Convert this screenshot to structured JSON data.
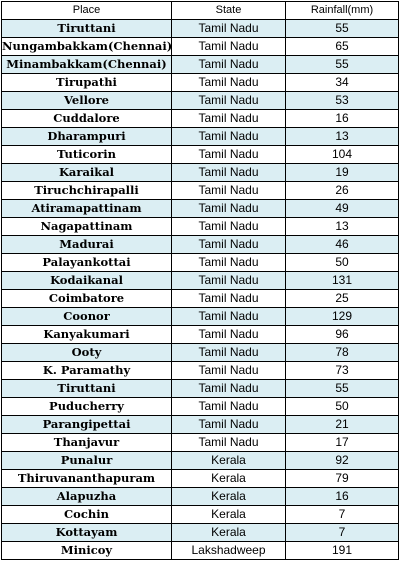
{
  "table": {
    "headers": [
      "Place",
      "State",
      "Rainfall(mm)"
    ],
    "rows": [
      {
        "place": "Tiruttani",
        "state": "Tamil Nadu",
        "rainfall": "55"
      },
      {
        "place": "Nungambakkam(Chennai)",
        "state": "Tamil Nadu",
        "rainfall": "65"
      },
      {
        "place": "Minambakkam(Chennai)",
        "state": "Tamil Nadu",
        "rainfall": "55"
      },
      {
        "place": "Tirupathi",
        "state": "Tamil Nadu",
        "rainfall": "34"
      },
      {
        "place": "Vellore",
        "state": "Tamil Nadu",
        "rainfall": "53"
      },
      {
        "place": "Cuddalore",
        "state": "Tamil Nadu",
        "rainfall": "16"
      },
      {
        "place": "Dharampuri",
        "state": "Tamil Nadu",
        "rainfall": "13"
      },
      {
        "place": "Tuticorin",
        "state": "Tamil Nadu",
        "rainfall": "104"
      },
      {
        "place": "Karaikal",
        "state": "Tamil Nadu",
        "rainfall": "19"
      },
      {
        "place": "Tiruchchirapalli",
        "state": "Tamil Nadu",
        "rainfall": "26"
      },
      {
        "place": "Atiramapattinam",
        "state": "Tamil Nadu",
        "rainfall": "49"
      },
      {
        "place": "Nagapattinam",
        "state": "Tamil Nadu",
        "rainfall": "13"
      },
      {
        "place": "Madurai",
        "state": "Tamil Nadu",
        "rainfall": "46"
      },
      {
        "place": "Palayankottai",
        "state": "Tamil Nadu",
        "rainfall": "50"
      },
      {
        "place": "Kodaikanal",
        "state": "Tamil Nadu",
        "rainfall": "131"
      },
      {
        "place": "Coimbatore",
        "state": "Tamil Nadu",
        "rainfall": "25"
      },
      {
        "place": "Coonor",
        "state": "Tamil Nadu",
        "rainfall": "129"
      },
      {
        "place": "Kanyakumari",
        "state": "Tamil Nadu",
        "rainfall": "96"
      },
      {
        "place": "Ooty",
        "state": "Tamil Nadu",
        "rainfall": "78"
      },
      {
        "place": "K. Paramathy",
        "state": "Tamil Nadu",
        "rainfall": "73"
      },
      {
        "place": "Tiruttani",
        "state": "Tamil Nadu",
        "rainfall": "55"
      },
      {
        "place": "Puducherry",
        "state": "Tamil Nadu",
        "rainfall": "50"
      },
      {
        "place": "Parangipettai",
        "state": "Tamil Nadu",
        "rainfall": "21"
      },
      {
        "place": "Thanjavur",
        "state": "Tamil Nadu",
        "rainfall": "17"
      },
      {
        "place": "Punalur",
        "state": "Kerala",
        "rainfall": "92"
      },
      {
        "place": "Thiruvananthapuram",
        "state": "Kerala",
        "rainfall": "79"
      },
      {
        "place": "Alapuzha",
        "state": "Kerala",
        "rainfall": "16"
      },
      {
        "place": "Cochin",
        "state": "Kerala",
        "rainfall": "7"
      },
      {
        "place": "Kottayam",
        "state": "Kerala",
        "rainfall": "7"
      },
      {
        "place": "Minicoy",
        "state": "Lakshadweep",
        "rainfall": "191"
      }
    ]
  },
  "colors": {
    "row_shade": "#dbeef3",
    "row_plain": "#ffffff",
    "border": "#000000"
  }
}
